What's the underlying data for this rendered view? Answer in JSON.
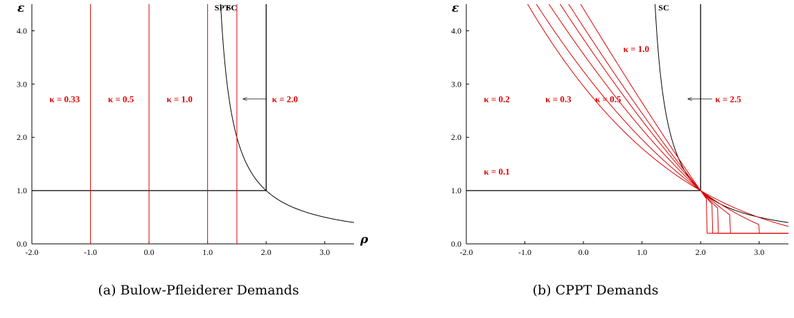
{
  "chart_data": [
    {
      "type": "line",
      "caption": "(a) Bulow-Pfleiderer Demands",
      "xlabel": "ρ",
      "ylabel": "ε",
      "xlim": [
        -2.0,
        3.5
      ],
      "ylim": [
        0.0,
        4.5
      ],
      "xticks": [
        "-2.0",
        "-1.0",
        "0.0",
        "1.0",
        "2.0",
        "3.0"
      ],
      "xtick_values": [
        -2,
        -1,
        0,
        1,
        2,
        3
      ],
      "yticks": [
        "0.0",
        "1.0",
        "2.0",
        "3.0",
        "4.0"
      ],
      "ytick_values": [
        0,
        1,
        2,
        3,
        4
      ],
      "grid": false,
      "kappa_curves": [
        {
          "name": "κ = 0.33",
          "formula": "vertical",
          "x": -1.0
        },
        {
          "name": "κ = 0.5",
          "formula": "vertical",
          "x": 0.0
        },
        {
          "name": "κ = 1.0",
          "formula": "vertical",
          "x": 1.0
        },
        {
          "name": "κ = 2.0",
          "formula": "vertical",
          "x": 1.5
        }
      ],
      "kappa_labels": [
        {
          "text": "κ = 0.33",
          "x": -1.7,
          "y": 2.66
        },
        {
          "text": "κ = 0.5",
          "x": -0.7,
          "y": 2.66
        },
        {
          "text": "κ = 1.0",
          "x": 0.3,
          "y": 2.66
        },
        {
          "text": "κ = 2.0",
          "x": 2.1,
          "y": 2.66
        }
      ],
      "black_labels": [
        {
          "text": "SPT",
          "x": 1.12,
          "y": 4.38
        },
        {
          "text": "SC",
          "x": 1.32,
          "y": 4.38
        }
      ],
      "arrow": {
        "from": [
          2.0,
          2.72
        ],
        "to": [
          1.6,
          2.72
        ]
      },
      "sc_curve": {
        "formula": "1/(rho-1)",
        "x_from": 1.22,
        "x_to": 3.5
      },
      "frame": {
        "h_y": 1.0,
        "v_x": 2.0
      }
    },
    {
      "type": "line",
      "caption": "(b) CPPT Demands",
      "xlabel": "ρ",
      "ylabel": "ε",
      "xlim": [
        -2.0,
        3.5
      ],
      "ylim": [
        0.0,
        4.5
      ],
      "xticks": [
        "-2.0",
        "-1.0",
        "0.0",
        "1.0",
        "2.0",
        "3.0"
      ],
      "xtick_values": [
        -2,
        -1,
        0,
        1,
        2,
        3
      ],
      "yticks": [
        "0.0",
        "1.0",
        "2.0",
        "3.0",
        "4.0"
      ],
      "ytick_values": [
        0,
        1,
        2,
        3,
        4
      ],
      "grid": false,
      "kappa_curves": [
        {
          "name": "κ = 0.1",
          "kappa": 0.1
        },
        {
          "name": "κ = 0.2",
          "kappa": 0.2
        },
        {
          "name": "κ = 0.3",
          "kappa": 0.3
        },
        {
          "name": "κ = 0.5",
          "kappa": 0.5
        },
        {
          "name": "κ = 1.0",
          "kappa": 1.0
        },
        {
          "name": "κ = 2.5",
          "kappa": 2.5
        }
      ],
      "kappa_labels": [
        {
          "text": "κ = 0.1",
          "x": -1.7,
          "y": 1.3
        },
        {
          "text": "κ = 0.2",
          "x": -1.7,
          "y": 2.66
        },
        {
          "text": "κ = 0.3",
          "x": -0.65,
          "y": 2.66
        },
        {
          "text": "κ = 0.5",
          "x": 0.2,
          "y": 2.66
        },
        {
          "text": "κ = 1.0",
          "x": 0.68,
          "y": 3.6
        },
        {
          "text": "κ = 2.5",
          "x": 2.25,
          "y": 2.66
        }
      ],
      "black_labels": [
        {
          "text": "SC",
          "x": 1.28,
          "y": 4.38
        }
      ],
      "arrow": {
        "from": [
          2.2,
          2.72
        ],
        "to": [
          1.78,
          2.72
        ]
      },
      "sc_curve": {
        "formula": "1/(rho-1)",
        "x_from": 1.22,
        "x_to": 3.5
      },
      "frame": {
        "h_y": 1.0,
        "v_x": 2.0
      }
    }
  ]
}
